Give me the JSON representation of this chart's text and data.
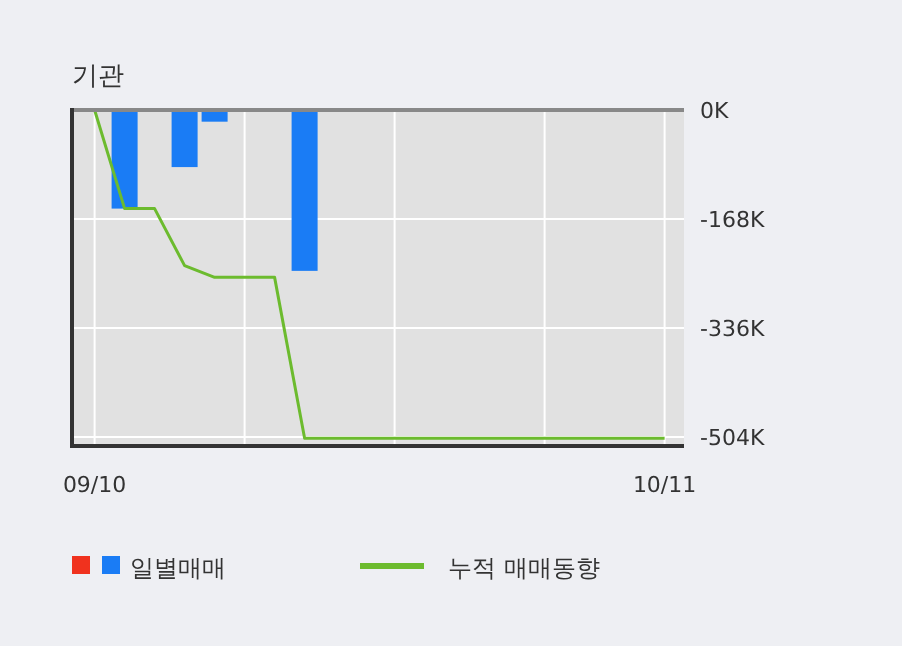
{
  "chart_data": {
    "type": "bar",
    "title": "기관",
    "categories": [
      "09/10",
      null,
      null,
      null,
      null,
      null,
      null,
      null,
      null,
      null,
      null,
      null,
      null,
      null,
      null,
      null,
      null,
      null,
      null,
      "10/11"
    ],
    "series": [
      {
        "name": "일별매매",
        "color": "#1a7cf5",
        "values": [
          0,
          -152000,
          0,
          -88000,
          -18000,
          0,
          0,
          -248000,
          0,
          0,
          0,
          0,
          0,
          0,
          0,
          0,
          0,
          0,
          0,
          0
        ]
      },
      {
        "color": "#f0321e",
        "values": [
          null,
          null,
          null,
          null,
          null,
          null,
          null,
          null,
          null,
          null,
          null,
          null,
          null,
          null,
          null,
          null,
          null,
          null,
          null,
          null
        ]
      },
      {
        "name": "누적 매매동향",
        "type": "line",
        "color": "#6cbb2e",
        "values": [
          0,
          -152000,
          -152000,
          -240000,
          -258000,
          -258000,
          -258000,
          -506000,
          -506000,
          -506000,
          -506000,
          -506000,
          -506000,
          -506000,
          -506000,
          -506000,
          -506000,
          -506000,
          -506000,
          -506000
        ]
      }
    ],
    "ylim": [
      -518000,
      0
    ],
    "yticks": [
      {
        "value": 0,
        "label": "0K"
      },
      {
        "value": -168000,
        "label": "-168K"
      },
      {
        "value": -336000,
        "label": "-336K"
      },
      {
        "value": -504000,
        "label": "-504K"
      }
    ],
    "grid": true,
    "legend": "bottom"
  }
}
